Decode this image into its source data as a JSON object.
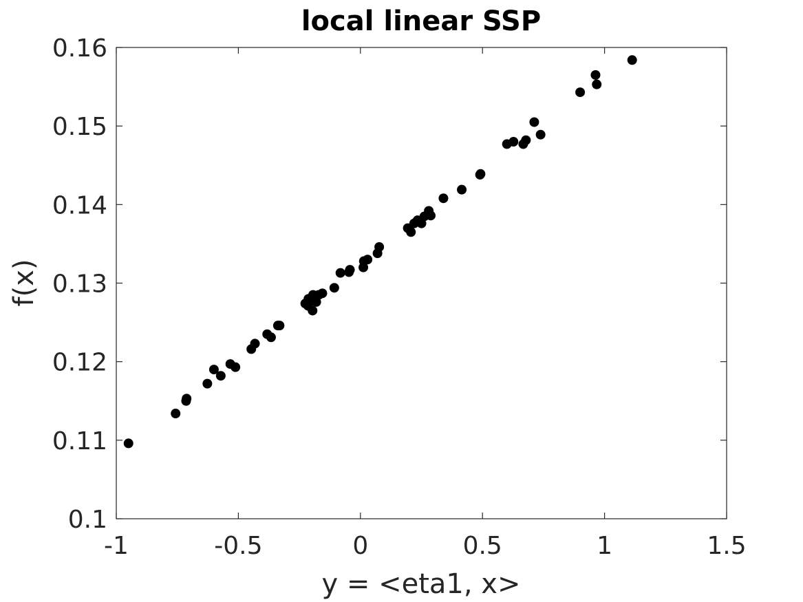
{
  "chart_data": {
    "type": "scatter",
    "title": "local linear SSP",
    "xlabel": "y = <eta1, x>",
    "ylabel": "f(x)",
    "xlim": [
      -1,
      1.5
    ],
    "ylim": [
      0.1,
      0.16
    ],
    "xticks": [
      -1,
      -0.5,
      0,
      0.5,
      1,
      1.5
    ],
    "yticks": [
      0.1,
      0.11,
      0.12,
      0.13,
      0.14,
      0.15,
      0.16
    ],
    "xtick_labels": [
      "-1",
      "-0.5",
      "0",
      "0.5",
      "1",
      "1.5"
    ],
    "ytick_labels": [
      "0.1",
      "0.11",
      "0.12",
      "0.13",
      "0.14",
      "0.15",
      "0.16"
    ],
    "grid": false,
    "marker_color": "#000000",
    "points": [
      [
        -0.95,
        0.1096
      ],
      [
        -0.757,
        0.1134
      ],
      [
        -0.714,
        0.115
      ],
      [
        -0.712,
        0.1153
      ],
      [
        -0.627,
        0.1172
      ],
      [
        -0.6,
        0.119
      ],
      [
        -0.572,
        0.1182
      ],
      [
        -0.533,
        0.1197
      ],
      [
        -0.512,
        0.1193
      ],
      [
        -0.447,
        0.1216
      ],
      [
        -0.432,
        0.1223
      ],
      [
        -0.382,
        0.1235
      ],
      [
        -0.366,
        0.1231
      ],
      [
        -0.338,
        0.1246
      ],
      [
        -0.331,
        0.1246
      ],
      [
        -0.226,
        0.1274
      ],
      [
        -0.213,
        0.128
      ],
      [
        -0.214,
        0.1271
      ],
      [
        -0.196,
        0.1265
      ],
      [
        -0.194,
        0.1285
      ],
      [
        -0.181,
        0.1276
      ],
      [
        -0.171,
        0.1285
      ],
      [
        -0.156,
        0.1287
      ],
      [
        -0.107,
        0.1294
      ],
      [
        -0.082,
        0.1313
      ],
      [
        -0.047,
        0.1314
      ],
      [
        -0.043,
        0.1317
      ],
      [
        0.012,
        0.132
      ],
      [
        0.014,
        0.1328
      ],
      [
        0.029,
        0.133
      ],
      [
        0.07,
        0.1338
      ],
      [
        0.077,
        0.1346
      ],
      [
        0.194,
        0.137
      ],
      [
        0.207,
        0.1365
      ],
      [
        0.22,
        0.1376
      ],
      [
        0.234,
        0.138
      ],
      [
        0.25,
        0.1376
      ],
      [
        0.262,
        0.1385
      ],
      [
        0.28,
        0.1392
      ],
      [
        0.288,
        0.1386
      ],
      [
        0.34,
        0.1408
      ],
      [
        0.415,
        0.1419
      ],
      [
        0.49,
        0.1438
      ],
      [
        0.492,
        0.1439
      ],
      [
        0.6,
        0.1477
      ],
      [
        0.627,
        0.148
      ],
      [
        0.667,
        0.1477
      ],
      [
        0.678,
        0.1482
      ],
      [
        0.712,
        0.1505
      ],
      [
        0.738,
        0.1489
      ],
      [
        0.9,
        0.1543
      ],
      [
        0.963,
        0.1565
      ],
      [
        0.968,
        0.1553
      ],
      [
        1.113,
        0.1584
      ]
    ]
  }
}
